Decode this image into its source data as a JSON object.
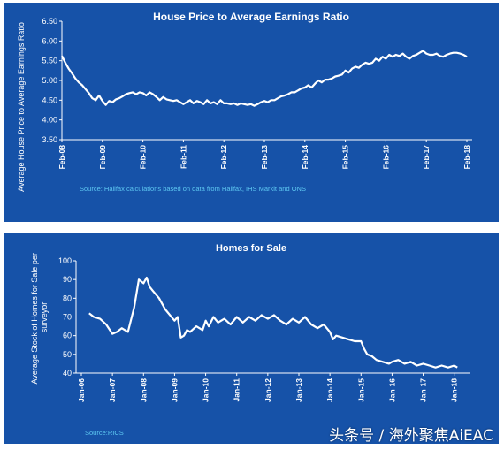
{
  "chart_data": [
    {
      "type": "line",
      "title": "House Price to Average Earnings Ratio",
      "ylabel": "Average House Price to Average Earnings Ratio",
      "xlabel": "",
      "source": "Source: Halifax calculations based on data from Halifax,  IHS Markit and ONS",
      "ylim": [
        3.5,
        6.5
      ],
      "yticks": [
        "3.50",
        "4.00",
        "4.50",
        "5.00",
        "5.50",
        "6.00",
        "6.50"
      ],
      "xticks": [
        "Feb-08",
        "Feb-09",
        "Feb-10",
        "Feb-11",
        "Feb-12",
        "Feb-13",
        "Feb-14",
        "Feb-15",
        "Feb-16",
        "Feb-17",
        "Feb-18"
      ],
      "grid": false,
      "colors": {
        "background": "#1652a8",
        "line": "#ffffff",
        "source_text": "#5ec8f2"
      },
      "series": [
        {
          "x": [
            "2008-02",
            "2008-03",
            "2008-04",
            "2008-05",
            "2008-06",
            "2008-07",
            "2008-08",
            "2008-09",
            "2008-10",
            "2008-11",
            "2008-12",
            "2009-01",
            "2009-02",
            "2009-03",
            "2009-04",
            "2009-05",
            "2009-06",
            "2009-07",
            "2009-08",
            "2009-09",
            "2009-10",
            "2009-11",
            "2009-12",
            "2010-01",
            "2010-02",
            "2010-03",
            "2010-04",
            "2010-05",
            "2010-06",
            "2010-07",
            "2010-08",
            "2010-09",
            "2010-10",
            "2010-11",
            "2010-12",
            "2011-01",
            "2011-02",
            "2011-03",
            "2011-04",
            "2011-05",
            "2011-06",
            "2011-07",
            "2011-08",
            "2011-09",
            "2011-10",
            "2011-11",
            "2011-12",
            "2012-01",
            "2012-02",
            "2012-03",
            "2012-04",
            "2012-05",
            "2012-06",
            "2012-07",
            "2012-08",
            "2012-09",
            "2012-10",
            "2012-11",
            "2012-12",
            "2013-01",
            "2013-02",
            "2013-03",
            "2013-04",
            "2013-05",
            "2013-06",
            "2013-07",
            "2013-08",
            "2013-09",
            "2013-10",
            "2013-11",
            "2013-12",
            "2014-01",
            "2014-02",
            "2014-03",
            "2014-04",
            "2014-05",
            "2014-06",
            "2014-07",
            "2014-08",
            "2014-09",
            "2014-10",
            "2014-11",
            "2014-12",
            "2015-01",
            "2015-02",
            "2015-03",
            "2015-04",
            "2015-05",
            "2015-06",
            "2015-07",
            "2015-08",
            "2015-09",
            "2015-10",
            "2015-11",
            "2015-12",
            "2016-01",
            "2016-02",
            "2016-03",
            "2016-04",
            "2016-05",
            "2016-06",
            "2016-07",
            "2016-08",
            "2016-09",
            "2016-10",
            "2016-11",
            "2016-12",
            "2017-01",
            "2017-02",
            "2017-03",
            "2017-04",
            "2017-05",
            "2017-06",
            "2017-07",
            "2017-08",
            "2017-09",
            "2017-10",
            "2017-11",
            "2017-12",
            "2018-01",
            "2018-02"
          ],
          "values": [
            5.62,
            5.45,
            5.3,
            5.18,
            5.05,
            4.95,
            4.88,
            4.78,
            4.68,
            4.55,
            4.5,
            4.62,
            4.48,
            4.38,
            4.48,
            4.45,
            4.52,
            4.55,
            4.6,
            4.65,
            4.68,
            4.7,
            4.65,
            4.7,
            4.68,
            4.62,
            4.7,
            4.65,
            4.58,
            4.5,
            4.58,
            4.52,
            4.5,
            4.48,
            4.5,
            4.45,
            4.4,
            4.45,
            4.5,
            4.42,
            4.48,
            4.45,
            4.4,
            4.5,
            4.42,
            4.45,
            4.4,
            4.5,
            4.42,
            4.42,
            4.4,
            4.42,
            4.38,
            4.42,
            4.4,
            4.38,
            4.4,
            4.36,
            4.4,
            4.45,
            4.48,
            4.45,
            4.5,
            4.5,
            4.55,
            4.6,
            4.62,
            4.65,
            4.7,
            4.7,
            4.75,
            4.8,
            4.82,
            4.88,
            4.82,
            4.92,
            5.0,
            4.95,
            5.02,
            5.02,
            5.05,
            5.1,
            5.12,
            5.15,
            5.25,
            5.2,
            5.3,
            5.35,
            5.32,
            5.4,
            5.45,
            5.42,
            5.45,
            5.55,
            5.5,
            5.6,
            5.55,
            5.65,
            5.6,
            5.65,
            5.62,
            5.68,
            5.6,
            5.55,
            5.62,
            5.65,
            5.7,
            5.75,
            5.68,
            5.65,
            5.65,
            5.68,
            5.62,
            5.6,
            5.65,
            5.68,
            5.7,
            5.7,
            5.68,
            5.65,
            5.6
          ]
        }
      ]
    },
    {
      "type": "line",
      "title": "Homes for Sale",
      "ylabel": "Average Stock of Homes for Sale per surveyor",
      "xlabel": "",
      "source": "Source:RICS",
      "ylim": [
        40,
        100
      ],
      "yticks": [
        "40",
        "50",
        "60",
        "70",
        "80",
        "90",
        "100"
      ],
      "xticks": [
        "Jan-06",
        "Jan-07",
        "Jan-08",
        "Jan-09",
        "Jan-10",
        "Jan-11",
        "Jan-12",
        "Jan-13",
        "Jan-14",
        "Jan-15",
        "Jan-16",
        "Jan-17",
        "Jan-18"
      ],
      "grid": false,
      "colors": {
        "background": "#1652a8",
        "line": "#ffffff",
        "source_text": "#5ec8f2"
      },
      "series": [
        {
          "x": [
            2006.25,
            2006.4,
            2006.6,
            2006.8,
            2007.0,
            2007.15,
            2007.3,
            2007.5,
            2007.7,
            2007.85,
            2008.0,
            2008.1,
            2008.2,
            2008.3,
            2008.4,
            2008.5,
            2008.6,
            2008.7,
            2008.85,
            2009.0,
            2009.1,
            2009.2,
            2009.3,
            2009.4,
            2009.5,
            2009.7,
            2009.9,
            2010.0,
            2010.1,
            2010.25,
            2010.4,
            2010.6,
            2010.8,
            2011.0,
            2011.2,
            2011.4,
            2011.6,
            2011.8,
            2012.0,
            2012.2,
            2012.4,
            2012.6,
            2012.8,
            2013.0,
            2013.2,
            2013.4,
            2013.6,
            2013.8,
            2014.0,
            2014.1,
            2014.2,
            2014.4,
            2014.6,
            2014.8,
            2015.0,
            2015.1,
            2015.2,
            2015.35,
            2015.5,
            2015.7,
            2015.9,
            2016.0,
            2016.2,
            2016.4,
            2016.6,
            2016.8,
            2017.0,
            2017.2,
            2017.4,
            2017.6,
            2017.8,
            2018.0,
            2018.1
          ],
          "values": [
            72,
            70,
            69,
            66,
            61,
            62,
            64,
            62,
            75,
            90,
            88,
            91,
            86,
            84,
            82,
            80,
            77,
            74,
            71,
            68,
            70,
            59,
            60,
            63,
            62,
            65,
            63,
            68,
            65,
            70,
            67,
            69,
            66,
            70,
            67,
            70,
            68,
            71,
            69,
            71,
            68,
            66,
            69,
            67,
            70,
            66,
            64,
            66,
            62,
            58,
            60,
            59,
            58,
            57,
            57,
            53,
            50,
            49,
            47,
            46,
            45,
            46,
            47,
            45,
            46,
            44,
            45,
            44,
            43,
            44,
            43,
            44,
            43
          ]
        }
      ]
    },
    {
      "watermark": "头条号 / 海外聚焦AiEAC"
    }
  ]
}
